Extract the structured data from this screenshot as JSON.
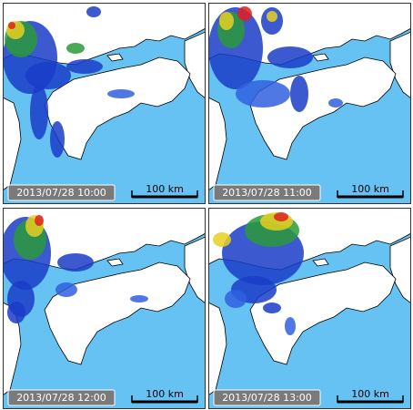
{
  "panels": [
    {
      "timestamp": "2013/07/28 10:00",
      "scale": "100 km"
    },
    {
      "timestamp": "2013/07/28 11:00",
      "scale": "100 km"
    },
    {
      "timestamp": "2013/07/28 12:00",
      "scale": "100 km"
    },
    {
      "timestamp": "2013/07/28 13:00",
      "scale": "100 km"
    }
  ]
}
